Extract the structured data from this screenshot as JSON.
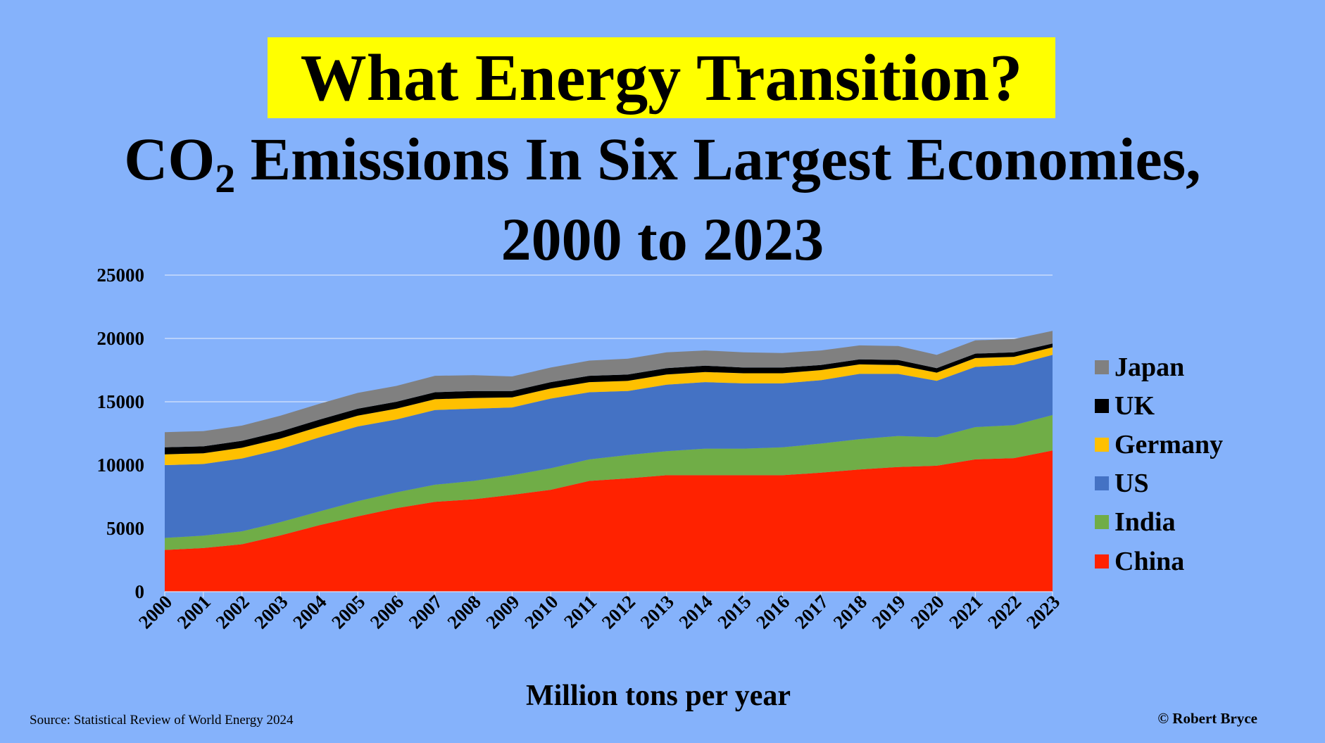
{
  "header": {
    "banner_title": "What Energy Transition?",
    "subtitle_prefix": "CO",
    "subtitle_subscript": "2",
    "subtitle_suffix": " Emissions In Six Largest Economies,",
    "subtitle_line2": "2000 to 2023"
  },
  "footer": {
    "source": "Source: Statistical Review of World Energy  2024",
    "credit": "© Robert Bryce"
  },
  "colors": {
    "background": "#85b2fb",
    "banner": "#ffff00"
  },
  "legend": [
    {
      "label": "Japan",
      "color": "#808080"
    },
    {
      "label": "UK",
      "color": "#000000"
    },
    {
      "label": "Germany",
      "color": "#ffc000"
    },
    {
      "label": "US",
      "color": "#4472c4"
    },
    {
      "label": "India",
      "color": "#70ad47"
    },
    {
      "label": "China",
      "color": "#ff2200"
    }
  ],
  "chart_data": {
    "type": "area",
    "stacked": true,
    "title": "",
    "xlabel": "Million tons per year",
    "ylabel": "",
    "ylim": [
      0,
      25000
    ],
    "yticks": [
      0,
      5000,
      10000,
      15000,
      20000,
      25000
    ],
    "grid": true,
    "legend_position": "right",
    "categories": [
      "2000",
      "2001",
      "2002",
      "2003",
      "2004",
      "2005",
      "2006",
      "2007",
      "2008",
      "2009",
      "2010",
      "2011",
      "2012",
      "2013",
      "2014",
      "2015",
      "2016",
      "2017",
      "2018",
      "2019",
      "2020",
      "2021",
      "2022",
      "2023"
    ],
    "series": [
      {
        "name": "China",
        "color": "#ff2200",
        "values": [
          3300,
          3450,
          3750,
          4450,
          5250,
          5950,
          6600,
          7100,
          7300,
          7650,
          8050,
          8750,
          8950,
          9200,
          9200,
          9200,
          9200,
          9400,
          9650,
          9850,
          9950,
          10450,
          10550,
          11150
        ]
      },
      {
        "name": "India",
        "color": "#70ad47",
        "values": [
          950,
          980,
          1020,
          1050,
          1080,
          1200,
          1250,
          1350,
          1450,
          1550,
          1700,
          1700,
          1850,
          1900,
          2100,
          2100,
          2200,
          2300,
          2400,
          2450,
          2250,
          2550,
          2600,
          2800
        ]
      },
      {
        "name": "US",
        "color": "#4472c4",
        "values": [
          5750,
          5650,
          5750,
          5750,
          5850,
          5900,
          5750,
          5900,
          5700,
          5350,
          5500,
          5300,
          5050,
          5250,
          5250,
          5150,
          5050,
          5000,
          5150,
          4900,
          4450,
          4750,
          4750,
          4750
        ]
      },
      {
        "name": "Germany",
        "color": "#ffc000",
        "values": [
          850,
          850,
          850,
          850,
          850,
          850,
          850,
          850,
          850,
          800,
          800,
          800,
          800,
          800,
          800,
          800,
          800,
          800,
          750,
          700,
          650,
          700,
          650,
          600
        ]
      },
      {
        "name": "UK",
        "color": "#000000",
        "values": [
          550,
          550,
          550,
          550,
          550,
          550,
          550,
          550,
          550,
          500,
          500,
          500,
          500,
          500,
          500,
          450,
          450,
          400,
          400,
          400,
          350,
          350,
          350,
          300
        ]
      },
      {
        "name": "Japan",
        "color": "#808080",
        "values": [
          1200,
          1200,
          1200,
          1250,
          1250,
          1250,
          1250,
          1300,
          1250,
          1150,
          1150,
          1200,
          1250,
          1250,
          1200,
          1200,
          1150,
          1150,
          1100,
          1100,
          1050,
          1050,
          1050,
          1000
        ]
      }
    ]
  }
}
